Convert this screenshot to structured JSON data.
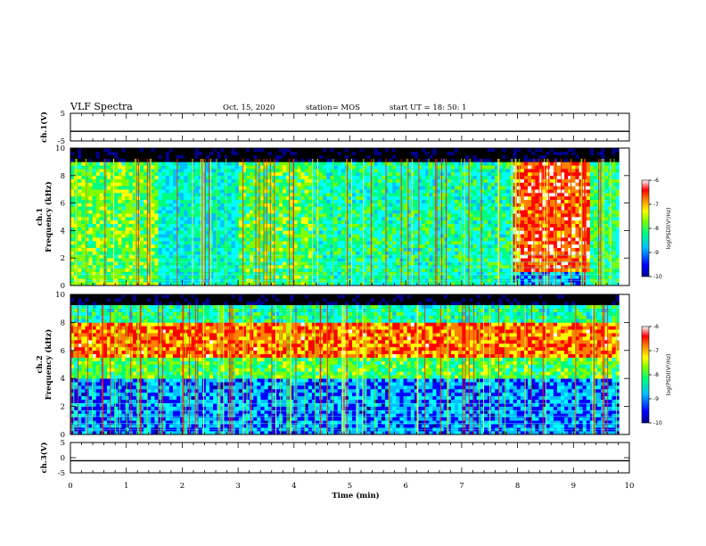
{
  "header": {
    "title": "VLF Spectra",
    "date": "Oct. 15, 2020",
    "station": "station= MOS",
    "start": "start UT = 18: 50: 1"
  },
  "colors": {
    "spectrogram_palette": [
      "#000000",
      "#00008b",
      "#0000ff",
      "#00bfff",
      "#00ffff",
      "#00ff80",
      "#7fff00",
      "#ffff00",
      "#ff8000",
      "#ff0000",
      "#ffffff"
    ],
    "trace": "#000000"
  },
  "chart_data": [
    {
      "type": "line",
      "name": "ch1-waveform",
      "ylabel": "ch.1(V)",
      "ylim": [
        -5,
        5
      ],
      "yticks": [
        "5",
        "-5"
      ],
      "xlim": [
        0,
        10
      ],
      "x": [
        0,
        10
      ],
      "values": [
        -1.5,
        -1.5
      ]
    },
    {
      "type": "heatmap",
      "name": "ch1-spectrogram",
      "ylabel": "ch.1\nFrequency (kHz)",
      "ylim": [
        0,
        10
      ],
      "yticks": [
        "0",
        "2",
        "4",
        "6",
        "8",
        "10"
      ],
      "xlim": [
        0,
        10
      ],
      "colorbar": {
        "label": "log(PSD)(V²/Hz)",
        "range": [
          -10,
          -6
        ],
        "ticks": [
          "-6",
          "-7",
          "-8",
          "-9",
          "-10"
        ]
      },
      "regions": [
        {
          "time": [
            0,
            1.6
          ],
          "freq": [
            0,
            9
          ],
          "level": -7.9
        },
        {
          "time": [
            1.6,
            3.0
          ],
          "freq": [
            0,
            9
          ],
          "level": -8.6
        },
        {
          "time": [
            3.0,
            4.3
          ],
          "freq": [
            0,
            9
          ],
          "level": -8.0
        },
        {
          "time": [
            4.3,
            7.9
          ],
          "freq": [
            0,
            9
          ],
          "level": -8.4
        },
        {
          "time": [
            7.9,
            9.3
          ],
          "freq": [
            1,
            9
          ],
          "level": -6.6
        },
        {
          "time": [
            9.3,
            9.8
          ],
          "freq": [
            0,
            9
          ],
          "level": -8.2
        }
      ]
    },
    {
      "type": "heatmap",
      "name": "ch2-spectrogram",
      "ylabel": "ch.2\nFrequency (kHz)",
      "ylim": [
        0,
        10
      ],
      "yticks": [
        "0",
        "2",
        "4",
        "6",
        "8",
        "10"
      ],
      "xlim": [
        0,
        10
      ],
      "colorbar": {
        "label": "log(PSD)(V²/Hz)",
        "range": [
          -10,
          -6
        ],
        "ticks": [
          "-6",
          "-7",
          "-8",
          "-9",
          "-10"
        ]
      },
      "bands": [
        {
          "freq": [
            0,
            4
          ],
          "level": -9.2
        },
        {
          "freq": [
            4,
            5.5
          ],
          "level": -8.0
        },
        {
          "freq": [
            5.5,
            8
          ],
          "level": -6.8
        },
        {
          "freq": [
            8,
            10
          ],
          "level": -8.4
        }
      ]
    },
    {
      "type": "line",
      "name": "ch3-waveform",
      "ylabel": "ch.3(V)",
      "ylim": [
        -5,
        5
      ],
      "yticks": [
        "5",
        "0",
        "-5"
      ],
      "xlim": [
        0,
        10
      ],
      "x": [
        0,
        10
      ],
      "values": [
        -1.0,
        -1.0
      ]
    }
  ],
  "xaxis": {
    "label": "Time (min)",
    "range": [
      0,
      10
    ],
    "ticks": [
      "0",
      "1",
      "2",
      "3",
      "4",
      "5",
      "6",
      "7",
      "8",
      "9",
      "10"
    ]
  }
}
